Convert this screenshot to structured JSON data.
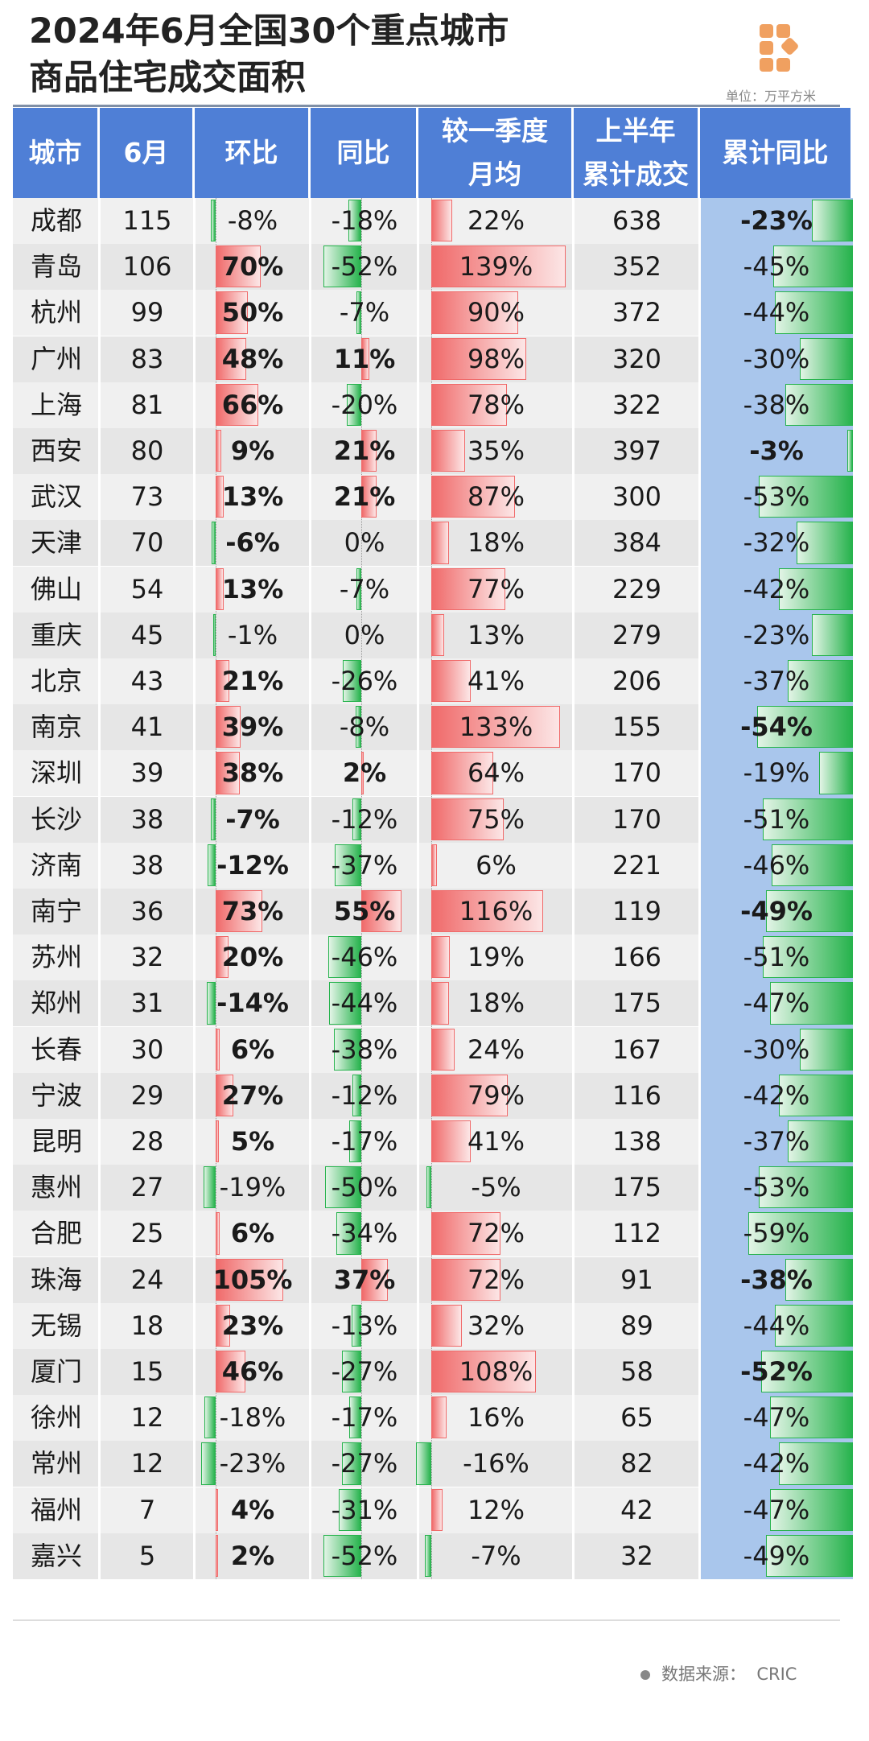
{
  "page": {
    "title_line1": "2024年6月全国30个重点城市",
    "title_line2": "商品住宅成交面积",
    "unit": "单位：万平方米",
    "source_label": "数据来源：",
    "source_name": "CRIC"
  },
  "colors": {
    "header": "#4f7fd6",
    "positive": "#f06a6a",
    "negative": "#27b34d",
    "cumulative_bg": "#a9c6ec"
  },
  "chart_data": {
    "type": "table",
    "columns": [
      {
        "key": "city",
        "label": [
          "城市"
        ]
      },
      {
        "key": "june",
        "label": [
          "6月"
        ]
      },
      {
        "key": "mom",
        "label": [
          "环比"
        ]
      },
      {
        "key": "yoy",
        "label": [
          "同比"
        ]
      },
      {
        "key": "vsq1",
        "label": [
          "较一季度",
          "月均"
        ]
      },
      {
        "key": "h1",
        "label": [
          "上半年",
          "累计成交"
        ]
      },
      {
        "key": "cumyoy",
        "label": [
          "累计同比"
        ]
      }
    ],
    "rows": [
      {
        "city": "成都",
        "june": 115,
        "mom": -8,
        "yoy": -18,
        "vsq1": 22,
        "h1": 638,
        "cumyoy": -23
      },
      {
        "city": "青岛",
        "june": 106,
        "mom": 70,
        "yoy": -52,
        "vsq1": 139,
        "h1": 352,
        "cumyoy": -45
      },
      {
        "city": "杭州",
        "june": 99,
        "mom": 50,
        "yoy": -7,
        "vsq1": 90,
        "h1": 372,
        "cumyoy": -44
      },
      {
        "city": "广州",
        "june": 83,
        "mom": 48,
        "yoy": 11,
        "vsq1": 98,
        "h1": 320,
        "cumyoy": -30
      },
      {
        "city": "上海",
        "june": 81,
        "mom": 66,
        "yoy": -20,
        "vsq1": 78,
        "h1": 322,
        "cumyoy": -38
      },
      {
        "city": "西安",
        "june": 80,
        "mom": 9,
        "yoy": 21,
        "vsq1": 35,
        "h1": 397,
        "cumyoy": -3
      },
      {
        "city": "武汉",
        "june": 73,
        "mom": 13,
        "yoy": 21,
        "vsq1": 87,
        "h1": 300,
        "cumyoy": -53
      },
      {
        "city": "天津",
        "june": 70,
        "mom": -6,
        "yoy": 0,
        "vsq1": 18,
        "h1": 384,
        "cumyoy": -32
      },
      {
        "city": "佛山",
        "june": 54,
        "mom": 13,
        "yoy": -7,
        "vsq1": 77,
        "h1": 229,
        "cumyoy": -42
      },
      {
        "city": "重庆",
        "june": 45,
        "mom": -1,
        "yoy": 0,
        "vsq1": 13,
        "h1": 279,
        "cumyoy": -23
      },
      {
        "city": "北京",
        "june": 43,
        "mom": 21,
        "yoy": -26,
        "vsq1": 41,
        "h1": 206,
        "cumyoy": -37
      },
      {
        "city": "南京",
        "june": 41,
        "mom": 39,
        "yoy": -8,
        "vsq1": 133,
        "h1": 155,
        "cumyoy": -54
      },
      {
        "city": "深圳",
        "june": 39,
        "mom": 38,
        "yoy": 2,
        "vsq1": 64,
        "h1": 170,
        "cumyoy": -19
      },
      {
        "city": "长沙",
        "june": 38,
        "mom": -7,
        "yoy": -12,
        "vsq1": 75,
        "h1": 170,
        "cumyoy": -51
      },
      {
        "city": "济南",
        "june": 38,
        "mom": -12,
        "yoy": -37,
        "vsq1": 6,
        "h1": 221,
        "cumyoy": -46
      },
      {
        "city": "南宁",
        "june": 36,
        "mom": 73,
        "yoy": 55,
        "vsq1": 116,
        "h1": 119,
        "cumyoy": -49
      },
      {
        "city": "苏州",
        "june": 32,
        "mom": 20,
        "yoy": -46,
        "vsq1": 19,
        "h1": 166,
        "cumyoy": -51
      },
      {
        "city": "郑州",
        "june": 31,
        "mom": -14,
        "yoy": -44,
        "vsq1": 18,
        "h1": 175,
        "cumyoy": -47
      },
      {
        "city": "长春",
        "june": 30,
        "mom": 6,
        "yoy": -38,
        "vsq1": 24,
        "h1": 167,
        "cumyoy": -30
      },
      {
        "city": "宁波",
        "june": 29,
        "mom": 27,
        "yoy": -12,
        "vsq1": 79,
        "h1": 116,
        "cumyoy": -42
      },
      {
        "city": "昆明",
        "june": 28,
        "mom": 5,
        "yoy": -17,
        "vsq1": 41,
        "h1": 138,
        "cumyoy": -37
      },
      {
        "city": "惠州",
        "june": 27,
        "mom": -19,
        "yoy": -50,
        "vsq1": -5,
        "h1": 175,
        "cumyoy": -53
      },
      {
        "city": "合肥",
        "june": 25,
        "mom": 6,
        "yoy": -34,
        "vsq1": 72,
        "h1": 112,
        "cumyoy": -59
      },
      {
        "city": "珠海",
        "june": 24,
        "mom": 105,
        "yoy": 37,
        "vsq1": 72,
        "h1": 91,
        "cumyoy": -38
      },
      {
        "city": "无锡",
        "june": 18,
        "mom": 23,
        "yoy": -13,
        "vsq1": 32,
        "h1": 89,
        "cumyoy": -44
      },
      {
        "city": "厦门",
        "june": 15,
        "mom": 46,
        "yoy": -27,
        "vsq1": 108,
        "h1": 58,
        "cumyoy": -52
      },
      {
        "city": "徐州",
        "june": 12,
        "mom": -18,
        "yoy": -17,
        "vsq1": 16,
        "h1": 65,
        "cumyoy": -47
      },
      {
        "city": "常州",
        "june": 12,
        "mom": -23,
        "yoy": -27,
        "vsq1": -16,
        "h1": 82,
        "cumyoy": -42
      },
      {
        "city": "福州",
        "june": 7,
        "mom": 4,
        "yoy": -31,
        "vsq1": 12,
        "h1": 42,
        "cumyoy": -47
      },
      {
        "city": "嘉兴",
        "june": 5,
        "mom": 2,
        "yoy": -52,
        "vsq1": -7,
        "h1": 32,
        "cumyoy": -49
      }
    ],
    "bold_cells": {
      "mom": [
        1,
        2,
        3,
        4,
        5,
        6,
        7,
        8,
        10,
        11,
        12,
        13,
        14,
        15,
        16,
        17,
        18,
        19,
        20,
        22,
        23,
        24,
        25,
        28,
        29
      ],
      "yoy": [
        3,
        5,
        6,
        12,
        15,
        23
      ],
      "cumyoy": [
        0,
        5,
        11,
        15,
        23,
        25
      ]
    }
  }
}
